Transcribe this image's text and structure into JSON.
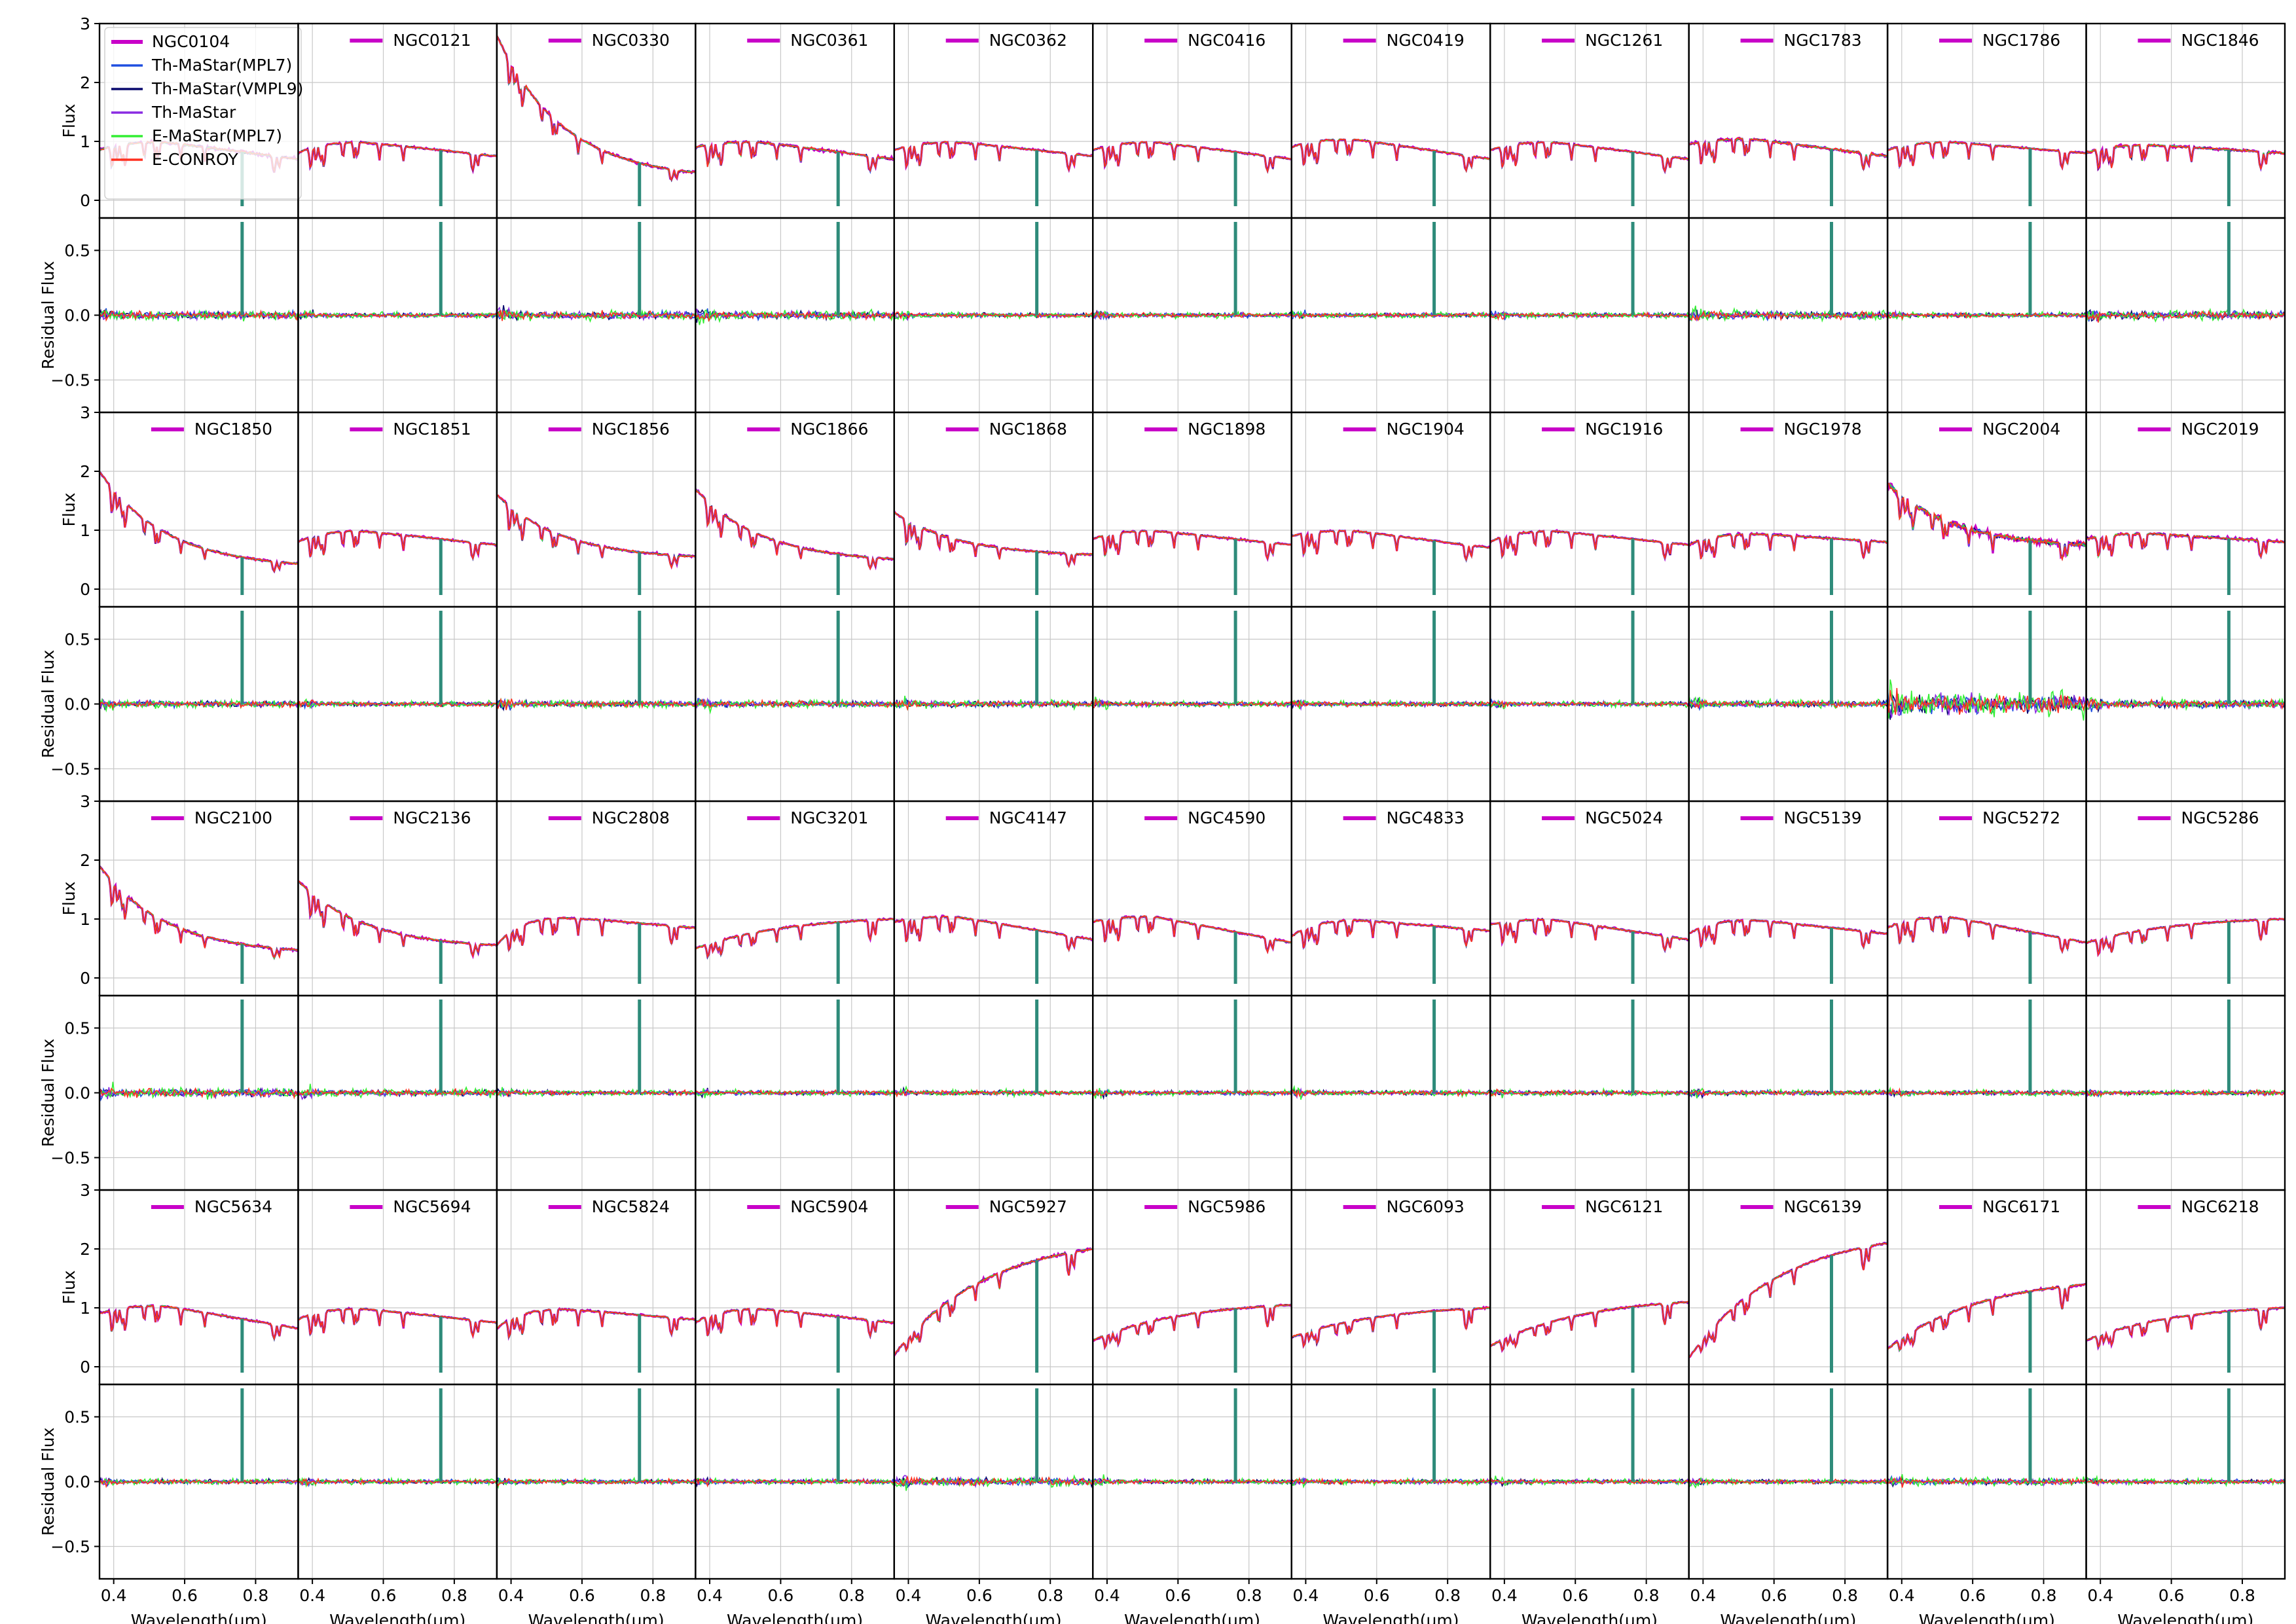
{
  "chart_data": {
    "type": "line",
    "layout": {
      "rows": 4,
      "cols": 11,
      "panels_per_cell": [
        "flux",
        "residual"
      ]
    },
    "x_label": "Wavelength(μm)",
    "x_range": [
      0.36,
      0.92
    ],
    "x_ticks": [
      0.4,
      0.6,
      0.8
    ],
    "x_tick_labels": [
      "0.4",
      "0.6",
      "0.8"
    ],
    "flux": {
      "ylabel": "Flux",
      "ylim": [
        -0.3,
        3.0
      ],
      "y_ticks": [
        0,
        1,
        2,
        3
      ],
      "y_tick_labels": [
        "0",
        "1",
        "2",
        "3"
      ]
    },
    "residual": {
      "ylabel": "Residual Flux",
      "ylim": [
        -0.75,
        0.75
      ],
      "y_ticks": [
        -0.5,
        0.0,
        0.5
      ],
      "y_tick_labels": [
        "−0.5",
        "0.0",
        "0.5"
      ]
    },
    "legend": {
      "placement": "top-left of first panel",
      "entries": [
        {
          "label": "NGC0104",
          "color": "#c800c8"
        },
        {
          "label": "Th-MaStar(MPL7)",
          "color": "#1f4fe0"
        },
        {
          "label": "Th-MaStar(VMPL9)",
          "color": "#0a0a6e"
        },
        {
          "label": "Th-MaStar",
          "color": "#8a2be2"
        },
        {
          "label": "E-MaStar(MPL7)",
          "color": "#33ee33"
        },
        {
          "label": "E-CONROY",
          "color": "#ff3020"
        }
      ]
    },
    "series_colors": {
      "observed": "#c800c8",
      "th_mastar_mpl7": "#1f4fe0",
      "th_mastar_vmpl9": "#0a0a6e",
      "th_mastar": "#8a2be2",
      "e_mastar_mpl7": "#33ee33",
      "e_conroy": "#ff3020",
      "telluric_mark": "#2e8b7a"
    },
    "grid": true,
    "panels": [
      {
        "name": "NGC0104",
        "shape": "flat",
        "y0": 0.85,
        "y1": 0.7,
        "peak": 1.0,
        "noise": 0.1
      },
      {
        "name": "NGC0121",
        "shape": "flat",
        "y0": 0.8,
        "y1": 0.75,
        "peak": 1.0,
        "noise": 0.06
      },
      {
        "name": "NGC0330",
        "shape": "blue",
        "y0": 2.8,
        "y1": 0.35,
        "peak": 2.8,
        "noise": 0.1
      },
      {
        "name": "NGC0361",
        "shape": "flat",
        "y0": 0.9,
        "y1": 0.7,
        "peak": 1.0,
        "noise": 0.1
      },
      {
        "name": "NGC0362",
        "shape": "flat",
        "y0": 0.85,
        "y1": 0.75,
        "peak": 1.0,
        "noise": 0.06
      },
      {
        "name": "NGC0416",
        "shape": "flat",
        "y0": 0.85,
        "y1": 0.7,
        "peak": 1.0,
        "noise": 0.06
      },
      {
        "name": "NGC0419",
        "shape": "flat",
        "y0": 0.9,
        "y1": 0.7,
        "peak": 1.05,
        "noise": 0.06
      },
      {
        "name": "NGC1261",
        "shape": "flat",
        "y0": 0.85,
        "y1": 0.7,
        "peak": 1.0,
        "noise": 0.06
      },
      {
        "name": "NGC1783",
        "shape": "flat",
        "y0": 0.95,
        "y1": 0.75,
        "peak": 1.05,
        "noise": 0.1
      },
      {
        "name": "NGC1786",
        "shape": "flat",
        "y0": 0.85,
        "y1": 0.8,
        "peak": 1.0,
        "noise": 0.06
      },
      {
        "name": "NGC1846",
        "shape": "flat",
        "y0": 0.8,
        "y1": 0.8,
        "peak": 0.95,
        "noise": 0.1
      },
      {
        "name": "NGC1850",
        "shape": "blue",
        "y0": 2.0,
        "y1": 0.35,
        "peak": 2.0,
        "noise": 0.08
      },
      {
        "name": "NGC1851",
        "shape": "flat",
        "y0": 0.8,
        "y1": 0.75,
        "peak": 1.0,
        "noise": 0.06
      },
      {
        "name": "NGC1856",
        "shape": "blue",
        "y0": 1.6,
        "y1": 0.5,
        "peak": 1.6,
        "noise": 0.08
      },
      {
        "name": "NGC1866",
        "shape": "blue",
        "y0": 1.7,
        "y1": 0.45,
        "peak": 1.7,
        "noise": 0.08
      },
      {
        "name": "NGC1868",
        "shape": "blue",
        "y0": 1.3,
        "y1": 0.55,
        "peak": 1.3,
        "noise": 0.08
      },
      {
        "name": "NGC1898",
        "shape": "flat",
        "y0": 0.85,
        "y1": 0.75,
        "peak": 1.0,
        "noise": 0.06
      },
      {
        "name": "NGC1904",
        "shape": "flat",
        "y0": 0.9,
        "y1": 0.7,
        "peak": 1.0,
        "noise": 0.06
      },
      {
        "name": "NGC1916",
        "shape": "flat",
        "y0": 0.8,
        "y1": 0.75,
        "peak": 1.0,
        "noise": 0.06
      },
      {
        "name": "NGC1978",
        "shape": "flat",
        "y0": 0.75,
        "y1": 0.8,
        "peak": 0.95,
        "noise": 0.08
      },
      {
        "name": "NGC2004",
        "shape": "blue",
        "y0": 1.8,
        "y1": 0.7,
        "peak": 1.8,
        "noise": 0.25
      },
      {
        "name": "NGC2019",
        "shape": "flat",
        "y0": 0.85,
        "y1": 0.8,
        "peak": 0.95,
        "noise": 0.1
      },
      {
        "name": "NGC2100",
        "shape": "blue",
        "y0": 1.9,
        "y1": 0.4,
        "peak": 1.9,
        "noise": 0.1
      },
      {
        "name": "NGC2136",
        "shape": "blue",
        "y0": 1.65,
        "y1": 0.5,
        "peak": 1.65,
        "noise": 0.08
      },
      {
        "name": "NGC2808",
        "shape": "flat",
        "y0": 0.55,
        "y1": 0.85,
        "peak": 1.05,
        "noise": 0.06
      },
      {
        "name": "NGC3201",
        "shape": "red",
        "y0": 0.5,
        "y1": 1.0,
        "peak": 1.15,
        "noise": 0.06
      },
      {
        "name": "NGC4147",
        "shape": "flat",
        "y0": 0.95,
        "y1": 0.65,
        "peak": 1.05,
        "noise": 0.06
      },
      {
        "name": "NGC4590",
        "shape": "flat",
        "y0": 0.95,
        "y1": 0.6,
        "peak": 1.05,
        "noise": 0.06
      },
      {
        "name": "NGC4833",
        "shape": "flat",
        "y0": 0.7,
        "y1": 0.8,
        "peak": 1.0,
        "noise": 0.06
      },
      {
        "name": "NGC5024",
        "shape": "flat",
        "y0": 0.9,
        "y1": 0.65,
        "peak": 1.0,
        "noise": 0.06
      },
      {
        "name": "NGC5139",
        "shape": "flat",
        "y0": 0.75,
        "y1": 0.75,
        "peak": 1.0,
        "noise": 0.06
      },
      {
        "name": "NGC5272",
        "shape": "flat",
        "y0": 0.85,
        "y1": 0.6,
        "peak": 1.05,
        "noise": 0.06
      },
      {
        "name": "NGC5286",
        "shape": "red",
        "y0": 0.6,
        "y1": 1.0,
        "peak": 1.1,
        "noise": 0.06
      },
      {
        "name": "NGC5634",
        "shape": "flat",
        "y0": 0.9,
        "y1": 0.65,
        "peak": 1.05,
        "noise": 0.06
      },
      {
        "name": "NGC5694",
        "shape": "flat",
        "y0": 0.8,
        "y1": 0.75,
        "peak": 1.0,
        "noise": 0.06
      },
      {
        "name": "NGC5824",
        "shape": "flat",
        "y0": 0.65,
        "y1": 0.8,
        "peak": 1.0,
        "noise": 0.06
      },
      {
        "name": "NGC5904",
        "shape": "flat",
        "y0": 0.75,
        "y1": 0.75,
        "peak": 1.0,
        "noise": 0.06
      },
      {
        "name": "NGC5927",
        "shape": "red",
        "y0": 0.2,
        "y1": 2.0,
        "peak": 2.0,
        "noise": 0.1
      },
      {
        "name": "NGC5986",
        "shape": "red",
        "y0": 0.45,
        "y1": 1.05,
        "peak": 1.1,
        "noise": 0.06
      },
      {
        "name": "NGC6093",
        "shape": "red",
        "y0": 0.5,
        "y1": 1.0,
        "peak": 1.05,
        "noise": 0.06
      },
      {
        "name": "NGC6121",
        "shape": "red",
        "y0": 0.35,
        "y1": 1.1,
        "peak": 1.15,
        "noise": 0.06
      },
      {
        "name": "NGC6139",
        "shape": "red",
        "y0": 0.15,
        "y1": 2.1,
        "peak": 2.1,
        "noise": 0.06
      },
      {
        "name": "NGC6171",
        "shape": "red",
        "y0": 0.3,
        "y1": 1.4,
        "peak": 1.45,
        "noise": 0.08
      },
      {
        "name": "NGC6218",
        "shape": "red",
        "y0": 0.45,
        "y1": 1.0,
        "peak": 1.1,
        "noise": 0.06
      }
    ]
  }
}
